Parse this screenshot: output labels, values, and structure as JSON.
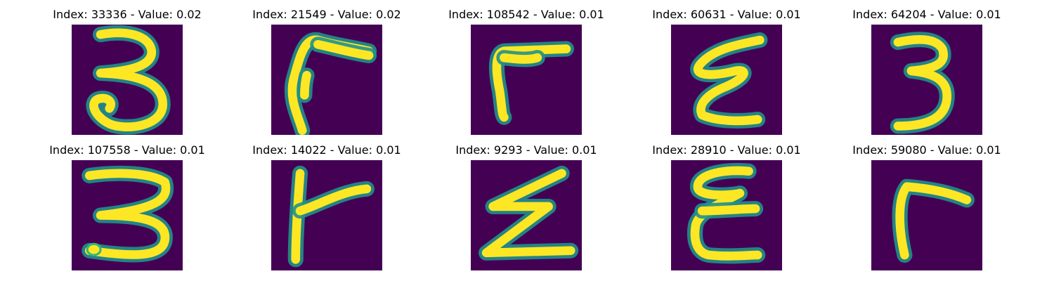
{
  "colors": {
    "background": "#440154",
    "stroke": "#fde725",
    "edge": "#35b779",
    "halo": "#21918c"
  },
  "panels": [
    {
      "caption": "Index: 33336 - Value: 0.02",
      "glyph": "three-a"
    },
    {
      "caption": "Index: 21549 - Value: 0.02",
      "glyph": "hook-a"
    },
    {
      "caption": "Index: 108542 - Value: 0.01",
      "glyph": "hook-b"
    },
    {
      "caption": "Index: 60631 - Value: 0.01",
      "glyph": "zig-a"
    },
    {
      "caption": "Index: 64204 - Value: 0.01",
      "glyph": "three-b"
    },
    {
      "caption": "Index: 107558 - Value: 0.01",
      "glyph": "three-c"
    },
    {
      "caption": "Index: 14022 - Value: 0.01",
      "glyph": "tee"
    },
    {
      "caption": "Index: 9293 - Value: 0.01",
      "glyph": "zig-b"
    },
    {
      "caption": "Index: 28910 - Value: 0.01",
      "glyph": "zig-c"
    },
    {
      "caption": "Index: 59080 - Value: 0.01",
      "glyph": "corner"
    }
  ]
}
